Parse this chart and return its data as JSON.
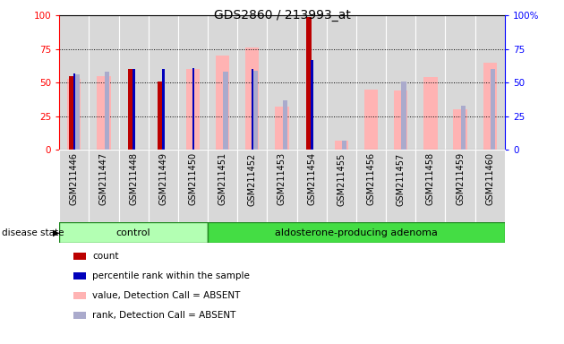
{
  "title": "GDS2860 / 213993_at",
  "samples": [
    "GSM211446",
    "GSM211447",
    "GSM211448",
    "GSM211449",
    "GSM211450",
    "GSM211451",
    "GSM211452",
    "GSM211453",
    "GSM211454",
    "GSM211455",
    "GSM211456",
    "GSM211457",
    "GSM211458",
    "GSM211459",
    "GSM211460"
  ],
  "count_values": [
    55,
    0,
    60,
    51,
    0,
    0,
    0,
    0,
    99,
    0,
    0,
    0,
    0,
    0,
    0
  ],
  "percentile_values": [
    57,
    0,
    60,
    60,
    61,
    0,
    60,
    0,
    67,
    0,
    0,
    0,
    0,
    0,
    0
  ],
  "value_absent": [
    53,
    55,
    0,
    0,
    60,
    70,
    76,
    32,
    0,
    7,
    45,
    44,
    54,
    30,
    65
  ],
  "rank_absent": [
    56,
    58,
    0,
    0,
    0,
    58,
    59,
    37,
    0,
    7,
    0,
    51,
    0,
    33,
    60
  ],
  "control_count": 5,
  "adenoma_count": 10,
  "ylim": [
    0,
    100
  ],
  "yticks": [
    0,
    25,
    50,
    75,
    100
  ],
  "count_color": "#bb0000",
  "percentile_color": "#0000bb",
  "value_absent_color": "#ffb3b3",
  "rank_absent_color": "#aaaacc",
  "col_bg_color": "#d8d8d8",
  "plot_bg": "#ffffff",
  "control_color": "#b3ffb3",
  "adenoma_color": "#44dd44",
  "ds_border_color": "#228822"
}
